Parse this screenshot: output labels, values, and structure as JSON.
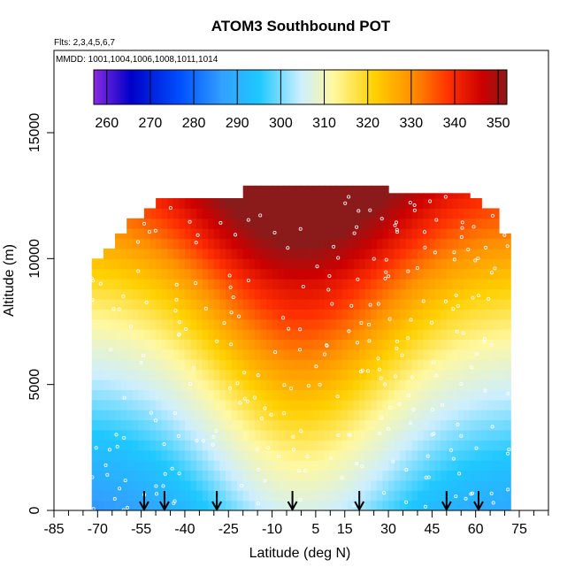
{
  "chart_data": {
    "type": "heatmap",
    "title": "ATOM3 Southbound POT",
    "subtitle_flights": "Flts: 2,3,4,5,6,7",
    "subtitle_dates": "MMDD: 1001,1004,1006,1008,1011,1014",
    "xlabel": "Latitude (deg N)",
    "ylabel": "Altitude (m)",
    "xlim": [
      -85,
      85
    ],
    "ylim": [
      0,
      18000
    ],
    "x_ticks": [
      -85,
      -70,
      -55,
      -40,
      -25,
      -10,
      5,
      15,
      30,
      45,
      60,
      75
    ],
    "x_minor_ticks": [
      -80,
      -75,
      -65,
      -60,
      -50,
      -45,
      -35,
      -30,
      -20,
      -15,
      -5,
      0,
      10,
      20,
      25,
      35,
      40,
      50,
      55,
      65,
      70,
      80,
      85
    ],
    "y_ticks": [
      0,
      5000,
      10000,
      15000
    ],
    "colorbar": {
      "min": 257,
      "max": 352,
      "ticks": [
        260,
        270,
        280,
        290,
        300,
        310,
        320,
        330,
        340,
        350
      ],
      "colors": [
        "#8a2be2",
        "#0000c8",
        "#0050ff",
        "#32a0ff",
        "#1ec8ff",
        "#cceeff",
        "#fff8a0",
        "#ffd000",
        "#ff9000",
        "#ff3000",
        "#cc0000",
        "#8b1a1a"
      ]
    },
    "sounding_latitudes": [
      -54,
      -47,
      -29,
      -3,
      20,
      50,
      61
    ],
    "arrow_latitudes": [
      -54,
      -47,
      -29,
      -3,
      20,
      50,
      61
    ],
    "theta_field_description": "potential temperature increasing with altitude; warmest (~345-352 K) in tropical upper troposphere, coolest (~280-290 K) near surface at high latitudes",
    "coverage": {
      "lat_min": -72,
      "lat_max": 72,
      "top_altitude_by_band": [
        {
          "lat": -72,
          "top": 10000
        },
        {
          "lat": -68,
          "top": 10400
        },
        {
          "lat": -64,
          "top": 11000
        },
        {
          "lat": -60,
          "top": 11600
        },
        {
          "lat": -55,
          "top": 12000
        },
        {
          "lat": -50,
          "top": 12400
        },
        {
          "lat": -25,
          "top": 12400
        },
        {
          "lat": -20,
          "top": 12900
        },
        {
          "lat": 25,
          "top": 12900
        },
        {
          "lat": 30,
          "top": 12600
        },
        {
          "lat": 58,
          "top": 12400
        },
        {
          "lat": 62,
          "top": 12000
        },
        {
          "lat": 68,
          "top": 11000
        },
        {
          "lat": 72,
          "top": 9600
        }
      ]
    }
  }
}
